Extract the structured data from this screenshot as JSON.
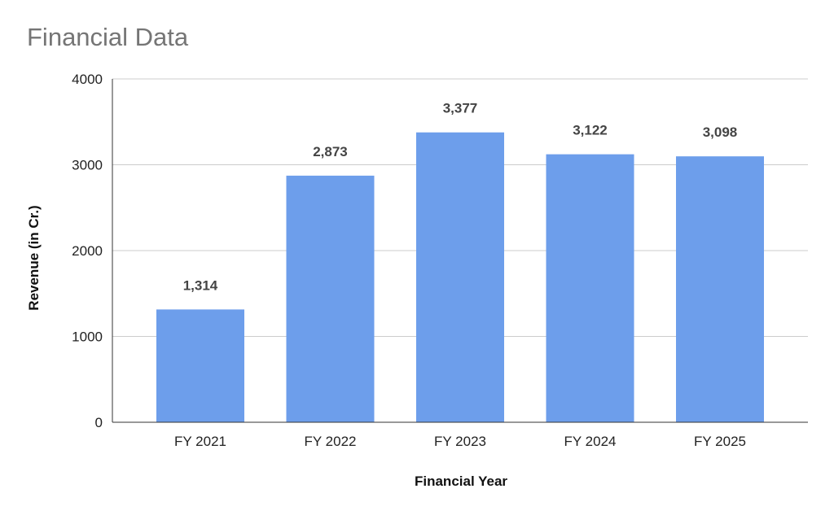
{
  "chart_data": {
    "type": "bar",
    "title": "Financial Data",
    "xlabel": "Financial Year",
    "ylabel": "Revenue (in Cr.)",
    "categories": [
      "FY 2021",
      "FY 2022",
      "FY 2023",
      "FY 2024",
      "FY 2025"
    ],
    "values": [
      1314,
      2873,
      3377,
      3122,
      3098
    ],
    "data_labels": [
      "1,314",
      "2,873",
      "3,377",
      "3,122",
      "3,098"
    ],
    "ylim": [
      0,
      4000
    ],
    "yticks": [
      0,
      1000,
      2000,
      3000,
      4000
    ],
    "ytick_labels": [
      "0",
      "1000",
      "2000",
      "3000",
      "4000"
    ],
    "grid": true,
    "legend": "none",
    "colors": {
      "bar": "#6d9eeb",
      "grid": "#cccccc",
      "axis": "#333333",
      "title": "#757575"
    }
  }
}
